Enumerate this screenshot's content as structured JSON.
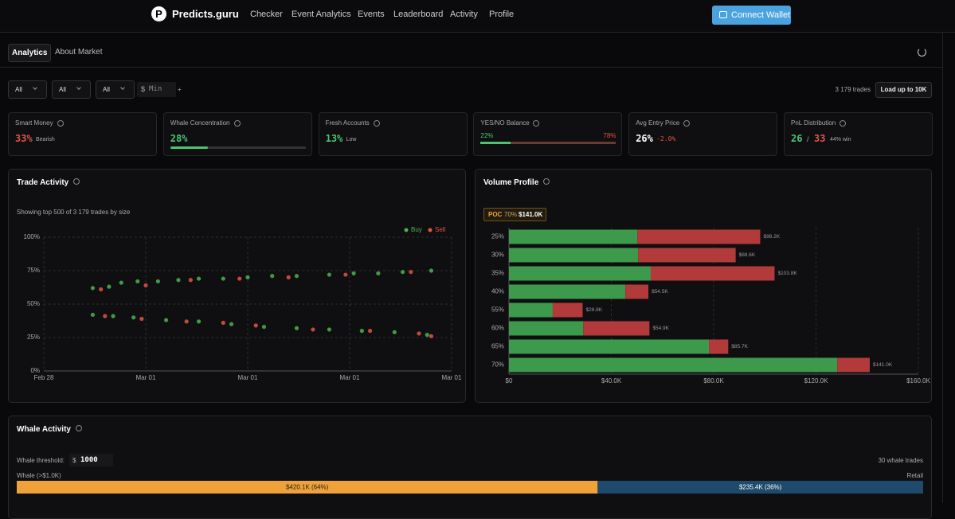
{
  "nav": {
    "brand": "Predicts.guru",
    "links": [
      "Checker",
      "Event Analytics",
      "Events",
      "Leaderboard",
      "Activity",
      "Profile"
    ],
    "connect": "Connect Wallet"
  },
  "tabs": [
    "Analytics",
    "About Market"
  ],
  "filters": {
    "selects": [
      "All",
      "All",
      "All"
    ],
    "currency": "$",
    "min_placeholder": "Min",
    "plus": "+",
    "trades_count": "3 179 trades",
    "load_button": "Load up to 10K"
  },
  "cards": [
    {
      "title": "Smart Money",
      "value": "33%",
      "note": "Bearish",
      "color": "#e05545"
    },
    {
      "title": "Whale Concentration",
      "value": 28,
      "value_label": "28%",
      "color": "#4cc472"
    },
    {
      "title": "Fresh Accounts",
      "value": "13%",
      "note": "Low",
      "color": "#4cc472"
    },
    {
      "title": "YES/NO Balance",
      "yes": 22,
      "yes_label": "22%",
      "no": 78,
      "no_label": "78%"
    },
    {
      "title": "Avg Entry Price",
      "value": "26%",
      "note": "-2.0%",
      "color": "#ffffff",
      "note_color": "#e05545"
    },
    {
      "title": "PnL Distribution",
      "wins": "26",
      "sep": "/",
      "losses": "33",
      "note": "44% win"
    }
  ],
  "trade_activity": {
    "type": "scatter",
    "title": "Trade Activity",
    "subtitle": "Showing top 500 of 3 179 trades by size",
    "grid": true,
    "xlim": [
      0,
      100
    ],
    "xticks": [
      {
        "value": 0,
        "label": "Feb 28"
      },
      {
        "value": 25,
        "label": "Mar 01"
      },
      {
        "value": 50,
        "label": "Mar 01"
      },
      {
        "value": 75,
        "label": "Mar 01"
      },
      {
        "value": 100,
        "label": "Mar 01"
      }
    ],
    "ylim": [
      0,
      100
    ],
    "yticks": [
      {
        "value": 0,
        "label": "0%"
      },
      {
        "value": 25,
        "label": "25%"
      },
      {
        "value": 50,
        "label": "50%"
      },
      {
        "value": 75,
        "label": "75%"
      },
      {
        "value": 100,
        "label": "100%"
      }
    ],
    "series": [
      {
        "name": "Buy",
        "color": "#4cb34f",
        "x": [
          12,
          16,
          19,
          23,
          28,
          33,
          38,
          44,
          50,
          56,
          62,
          70,
          76,
          82,
          88,
          95,
          12,
          17,
          22,
          30,
          38,
          46,
          54,
          62,
          70,
          78,
          86,
          94
        ],
        "values": [
          62,
          63,
          66,
          67,
          67,
          68,
          69,
          69,
          70,
          71,
          71,
          72,
          73,
          73,
          74,
          75,
          42,
          41,
          40,
          38,
          37,
          35,
          33,
          32,
          31,
          30,
          29,
          27
        ]
      },
      {
        "name": "Sell",
        "color": "#e05545",
        "x": [
          14,
          25,
          36,
          48,
          60,
          74,
          90,
          15,
          24,
          35,
          44,
          52,
          66,
          80,
          92,
          95
        ],
        "values": [
          61,
          64,
          68,
          69,
          70,
          72,
          74,
          41,
          39,
          37,
          36,
          34,
          31,
          30,
          28,
          26
        ]
      }
    ]
  },
  "volume_profile": {
    "type": "bar",
    "orientation": "horizontal",
    "stacked": true,
    "title": "Volume Profile",
    "poc": {
      "label": "POC",
      "level": "70%",
      "value": "$141.0K"
    },
    "categories": [
      "25%",
      "30%",
      "35%",
      "40%",
      "55%",
      "60%",
      "65%",
      "70%"
    ],
    "series": [
      {
        "color": "#3d9a4c",
        "values": [
          50200,
          50500,
          55400,
          45500,
          17100,
          29000,
          78200,
          128300
        ]
      },
      {
        "color": "#b33a3a",
        "values": [
          48000,
          38100,
          48400,
          9000,
          11700,
          25900,
          7500,
          12700
        ]
      }
    ],
    "total_labels": [
      "$98.2K",
      "$88.6K",
      "$103.8K",
      "$54.5K",
      "$28.8K",
      "$54.9K",
      "$85.7K",
      "$141.0K"
    ],
    "xlim": [
      0,
      160000
    ],
    "xticks": [
      {
        "value": 0,
        "label": "$0"
      },
      {
        "value": 40000,
        "label": "$40.0K"
      },
      {
        "value": 80000,
        "label": "$80.0K"
      },
      {
        "value": 120000,
        "label": "$120.0K"
      },
      {
        "value": 160000,
        "label": "$160.0K"
      }
    ],
    "grid": true
  },
  "whale": {
    "title": "Whale Activity",
    "threshold_label": "Whale threshold:",
    "currency": "$",
    "threshold": "1000",
    "whale_trades": "30 whale trades",
    "whale_label": "Whale (>$1.0K)",
    "retail_label": "Retail",
    "split": {
      "values": [
        420100,
        235400
      ],
      "value_labels": [
        "$420.1K (64%)",
        "$235.4K (36%)"
      ],
      "colors": [
        "#f0a23a",
        "#1f4a6c"
      ]
    }
  }
}
